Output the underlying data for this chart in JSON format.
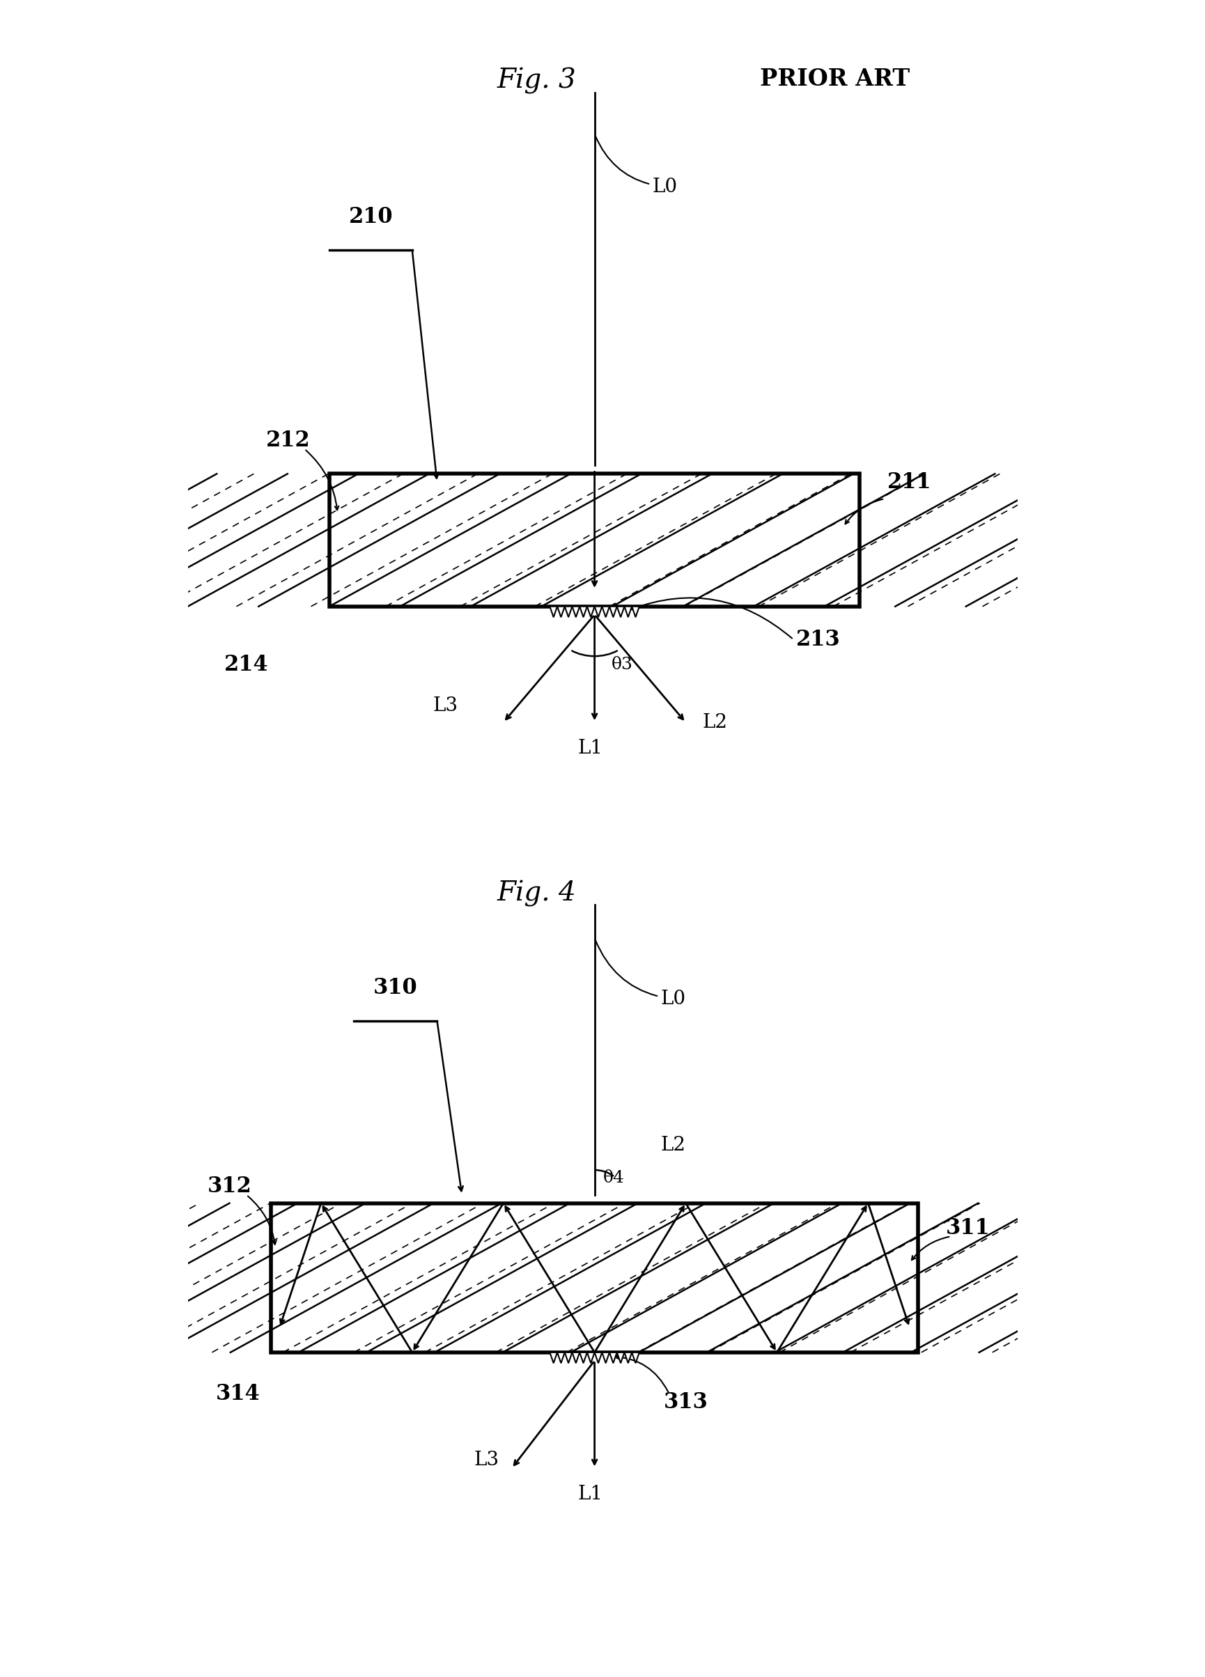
{
  "fig3_title": "Fig. 3",
  "fig4_title": "Fig. 4",
  "prior_art": "PRIOR ART",
  "bg_color": "#ffffff",
  "fig3": {
    "label_210": "210",
    "label_211": "211",
    "label_212": "212",
    "label_213": "213",
    "label_214": "214",
    "label_L0": "L0",
    "label_L1": "L1",
    "label_L2": "L2",
    "label_L3": "L3",
    "label_theta": "θ3"
  },
  "fig4": {
    "label_310": "310",
    "label_311": "311",
    "label_312": "312",
    "label_313": "313",
    "label_314": "314",
    "label_L0": "L0",
    "label_L1": "L1",
    "label_L2": "L2",
    "label_L3": "L3",
    "label_theta": "θ4"
  }
}
